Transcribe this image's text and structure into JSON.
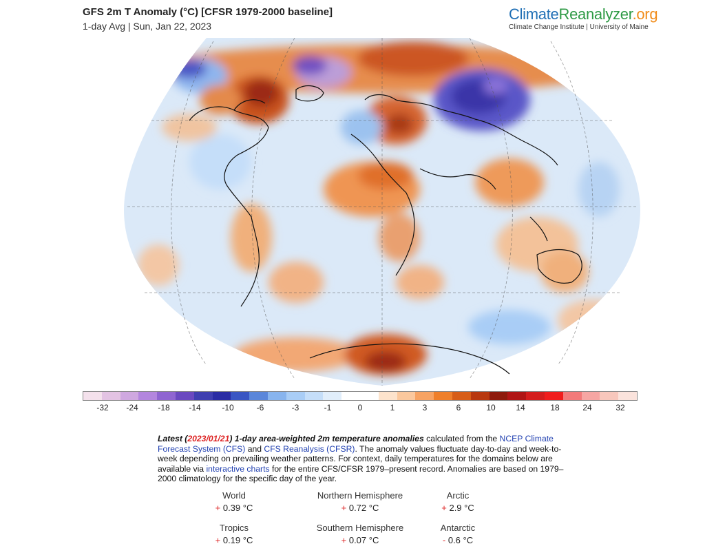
{
  "header": {
    "title": "GFS 2m T Anomaly (°C) [CFSR 1979-2000 baseline]",
    "subtitle": "1-day Avg | Sun, Jan 22, 2023"
  },
  "brand": {
    "part1": "Climate",
    "part2": "Reanalyzer",
    "part3": ".org",
    "tagline": "Climate Change Institute | University of Maine",
    "colors": {
      "climate": "#1f6fb5",
      "reanalyzer": "#2e9a45",
      "org": "#f18c1a"
    }
  },
  "colorbar": {
    "colors": [
      "#f4e1ec",
      "#e3c3e3",
      "#cfa8e0",
      "#b386de",
      "#8f65d1",
      "#6a49c0",
      "#3f3fb0",
      "#2a2ca4",
      "#3a56c3",
      "#5a86da",
      "#88b4ee",
      "#a9cdf6",
      "#c5def9",
      "#e1eefb",
      "#ffffff",
      "#ffffff",
      "#fde3cc",
      "#fbc89d",
      "#f7a363",
      "#ef7f2a",
      "#d75d17",
      "#b8380f",
      "#8e1a0c",
      "#b01515",
      "#d41d1d",
      "#f01d1d",
      "#f27a7a",
      "#f6a6a3",
      "#f8c7bc",
      "#fbe3dc"
    ],
    "tick_labels": [
      "-32",
      "-24",
      "-18",
      "-14",
      "-10",
      "-6",
      "-3",
      "-1",
      "0",
      "1",
      "3",
      "6",
      "10",
      "14",
      "18",
      "24",
      "32"
    ]
  },
  "description": {
    "latest_prefix": "Latest (",
    "latest_date": "2023/01/21",
    "latest_suffix": ") 1-day area-weighted 2m temperature anomalies",
    "text1": " calculated from the ",
    "link1": "NCEP Climate Forecast System (CFS)",
    "text2": " and ",
    "link2": "CFS Reanalysis (CFSR)",
    "text3": ". The anomaly values fluctuate day-to-day and week-to-week depending on prevailing weather patterns. For context, daily temperatures for the domains below are available via ",
    "link3": "interactive charts",
    "text4": " for the entire CFS/CFSR 1979–present record. Anomalies are based on 1979–2000 climatology for the specific day of the year."
  },
  "stats": [
    {
      "label": "World",
      "sign": "+",
      "value": "0.39 °C"
    },
    {
      "label": "Northern Hemisphere",
      "sign": "+",
      "value": "0.72 °C"
    },
    {
      "label": "Arctic",
      "sign": "+",
      "value": "2.9 °C"
    },
    {
      "label": "Tropics",
      "sign": "+",
      "value": "0.19 °C"
    },
    {
      "label": "Southern Hemisphere",
      "sign": "+",
      "value": "0.07 °C"
    },
    {
      "label": "Antarctic",
      "sign": "-",
      "value": "0.6 °C"
    }
  ]
}
